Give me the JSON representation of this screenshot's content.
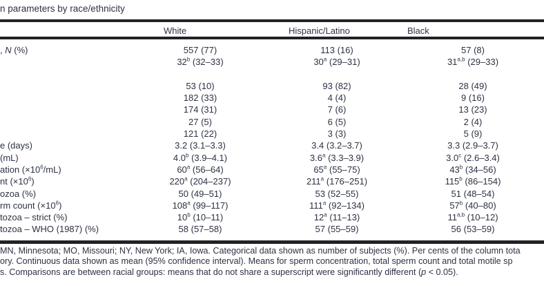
{
  "title": "n parameters by race/ethnicity",
  "columns": {
    "white": "White",
    "hispanic": "Hispanic/Latino",
    "black": "Black"
  },
  "table": {
    "rows": [
      {
        "label": ", *N* (%)",
        "white": "557 (77)",
        "hispanic": "113 (16)",
        "black": "57 (8)"
      },
      {
        "label": "",
        "white": "32^{b} (32–33)",
        "hispanic": "30^{a} (29–31)",
        "black": "31^{a,b} (29–33)"
      },
      {
        "label": "",
        "white": "",
        "hispanic": "",
        "black": ""
      },
      {
        "label": "",
        "white": "53 (10)",
        "hispanic": "93 (82)",
        "black": "28 (49)"
      },
      {
        "label": "",
        "white": "182 (33)",
        "hispanic": "4 (4)",
        "black": "9 (16)"
      },
      {
        "label": "",
        "white": "174 (31)",
        "hispanic": "7 (6)",
        "black": "13 (23)"
      },
      {
        "label": "",
        "white": "27 (5)",
        "hispanic": "6 (5)",
        "black": "2 (4)"
      },
      {
        "label": "",
        "white": "121 (22)",
        "hispanic": "3 (3)",
        "black": "5 (9)"
      },
      {
        "label": "e (days)",
        "white": "3.2 (3.1–3.3)",
        "hispanic": "3.4 (3.2–3.7)",
        "black": "3.3 (2.9–3.7)"
      },
      {
        "label": "(mL)",
        "white": "4.0^{b} (3.9–4.1)",
        "hispanic": "3.6^{a} (3.3–3.9)",
        "black": "3.0^{c} (2.6–3.4)"
      },
      {
        "label": "ation (×10^{6}/mL)",
        "white": "60^{a} (56–64)",
        "hispanic": "65^{a} (55–75)",
        "black": "43^{b} (34–56)"
      },
      {
        "label": "nt (×10^{6})",
        "white": "220^{a} (204–237)",
        "hispanic": "211^{a} (176–251)",
        "black": "115^{b} (86–154)"
      },
      {
        "label": "ozoa (%)",
        "white": "50 (49–51)",
        "hispanic": "53 (52–55)",
        "black": "51 (48–54)"
      },
      {
        "label": "rm count (×10^{6})",
        "white": "108^{a} (99–117)",
        "hispanic": "111^{a} (92–134)",
        "black": "57^{b} (40–80)"
      },
      {
        "label": "tozoa – strict (%)",
        "white": "10^{b} (10–11)",
        "hispanic": "12^{a} (11–13)",
        "black": "11^{a,b} (10–12)"
      },
      {
        "label": "tozoa – WHO (1987) (%)",
        "white": "58 (57–58)",
        "hispanic": "57 (55–59)",
        "black": "56 (53–59)"
      }
    ]
  },
  "footnotes": {
    "lines": [
      "MN, Minnesota; MO, Missouri; NY, New York; IA, Iowa. Categorical data shown as number of subjects (%). Per cents of the column tota",
      "ory. Continuous data shown as mean (95% confidence interval). Means for sperm concentration, total sperm count and total motile sp",
      "s. Comparisons are between racial groups: means that do not share a superscript were significantly different (*p* < 0.05)."
    ]
  },
  "colors": {
    "text": "#2d3144",
    "rule": "#222226",
    "background": "#ffffff"
  }
}
